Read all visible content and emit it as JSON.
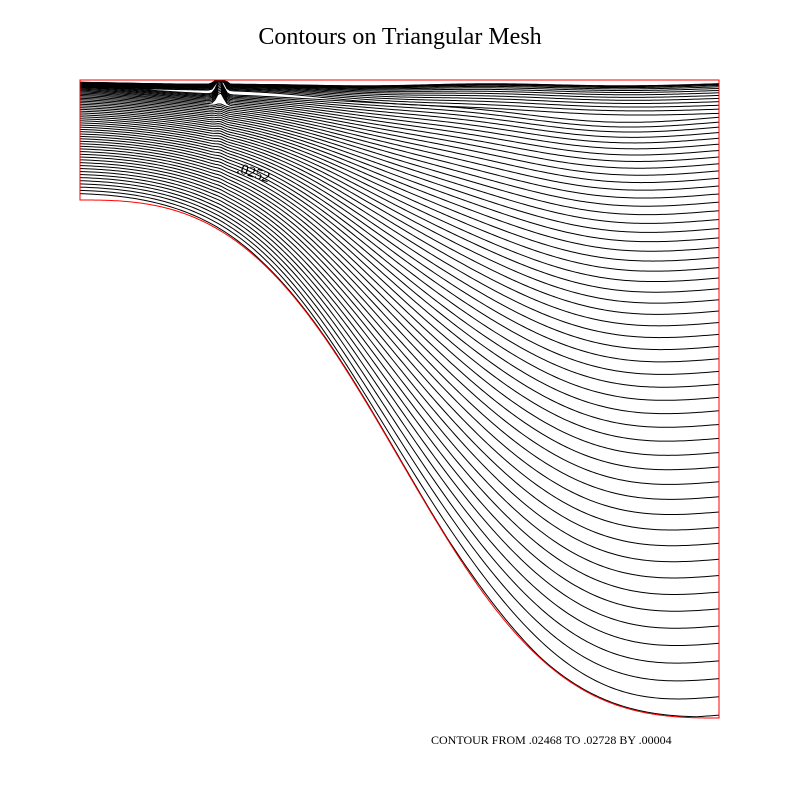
{
  "title": "Contours on Triangular Mesh",
  "contour_label": ".0252",
  "footer": "CONTOUR FROM .02468 TO .02728 BY .00004",
  "colors": {
    "boundary": "#ff0000",
    "contour": "#000000",
    "background": "#ffffff"
  },
  "contours": {
    "from": 0.02468,
    "to": 0.02728,
    "step": 4e-05
  }
}
